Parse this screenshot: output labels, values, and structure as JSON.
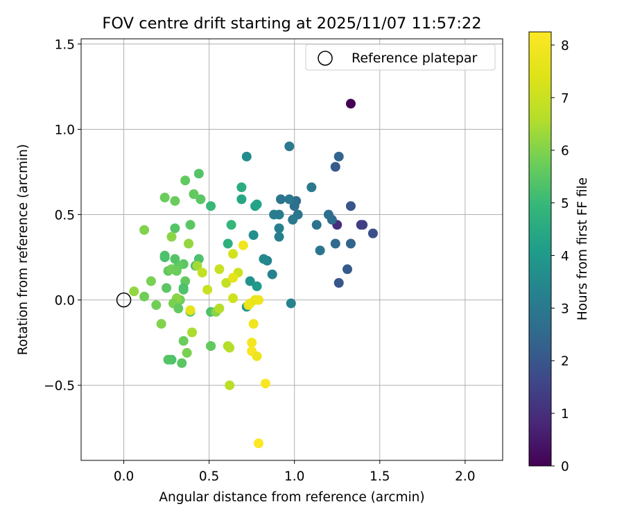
{
  "chart_data": {
    "type": "scatter",
    "title": "FOV centre drift starting at 2025/11/07 11:57:22",
    "xlabel": "Angular distance from reference (arcmin)",
    "ylabel": "Rotation from reference (arcmin)",
    "xlim": [
      -0.25,
      2.22
    ],
    "ylim": [
      -0.94,
      1.53
    ],
    "xticks": [
      0.0,
      0.5,
      1.0,
      1.5,
      2.0
    ],
    "xtick_labels": [
      "0.0",
      "0.5",
      "1.0",
      "1.5",
      "2.0"
    ],
    "yticks": [
      -0.5,
      0.0,
      0.5,
      1.0,
      1.5
    ],
    "ytick_labels": [
      "−0.5",
      "0.0",
      "0.5",
      "1.0",
      "1.5"
    ],
    "grid": true,
    "legend": {
      "placement": "top-right",
      "entries": [
        "Reference platepar"
      ]
    },
    "reference_point": {
      "label": "Reference platepar",
      "x": 0.0,
      "y": 0.0
    },
    "colorbar": {
      "label": "Hours from first FF file",
      "min": 0,
      "max": 8.25,
      "ticks": [
        0,
        1,
        2,
        3,
        4,
        5,
        6,
        7,
        8
      ],
      "tick_labels": [
        "0",
        "1",
        "2",
        "3",
        "4",
        "5",
        "6",
        "7",
        "8"
      ],
      "colormap": "viridis"
    },
    "points": [
      {
        "x": 1.33,
        "y": 1.15,
        "t": 0.0
      },
      {
        "x": 1.25,
        "y": 0.44,
        "t": 1.0
      },
      {
        "x": 1.39,
        "y": 0.44,
        "t": 1.3
      },
      {
        "x": 1.4,
        "y": 0.44,
        "t": 1.4
      },
      {
        "x": 1.46,
        "y": 0.39,
        "t": 1.8
      },
      {
        "x": 1.33,
        "y": 0.55,
        "t": 2.0
      },
      {
        "x": 1.31,
        "y": 0.18,
        "t": 2.1
      },
      {
        "x": 1.26,
        "y": 0.1,
        "t": 2.0
      },
      {
        "x": 1.24,
        "y": 0.78,
        "t": 2.1
      },
      {
        "x": 1.26,
        "y": 0.84,
        "t": 2.4
      },
      {
        "x": 1.33,
        "y": 0.33,
        "t": 2.4
      },
      {
        "x": 1.24,
        "y": 0.33,
        "t": 2.6
      },
      {
        "x": 1.22,
        "y": 0.47,
        "t": 2.6
      },
      {
        "x": 1.2,
        "y": 0.5,
        "t": 2.7
      },
      {
        "x": 1.13,
        "y": 0.44,
        "t": 2.8
      },
      {
        "x": 1.15,
        "y": 0.29,
        "t": 2.9
      },
      {
        "x": 1.1,
        "y": 0.66,
        "t": 3.0
      },
      {
        "x": 1.01,
        "y": 0.58,
        "t": 2.6
      },
      {
        "x": 1.0,
        "y": 0.55,
        "t": 2.7
      },
      {
        "x": 1.02,
        "y": 0.5,
        "t": 2.9
      },
      {
        "x": 0.99,
        "y": 0.47,
        "t": 3.0
      },
      {
        "x": 0.97,
        "y": 0.59,
        "t": 3.0
      },
      {
        "x": 0.92,
        "y": 0.59,
        "t": 2.9
      },
      {
        "x": 0.97,
        "y": 0.9,
        "t": 3.0
      },
      {
        "x": 0.91,
        "y": 0.5,
        "t": 3.1
      },
      {
        "x": 0.88,
        "y": 0.5,
        "t": 3.1
      },
      {
        "x": 0.91,
        "y": 0.42,
        "t": 3.2
      },
      {
        "x": 0.91,
        "y": 0.37,
        "t": 3.2
      },
      {
        "x": 0.98,
        "y": -0.02,
        "t": 3.3
      },
      {
        "x": 0.87,
        "y": 0.15,
        "t": 3.3
      },
      {
        "x": 0.84,
        "y": 0.23,
        "t": 3.4
      },
      {
        "x": 0.82,
        "y": 0.24,
        "t": 3.5
      },
      {
        "x": 0.72,
        "y": 0.84,
        "t": 3.6
      },
      {
        "x": 0.76,
        "y": 0.38,
        "t": 3.7
      },
      {
        "x": 0.74,
        "y": 0.11,
        "t": 3.8
      },
      {
        "x": 0.72,
        "y": -0.04,
        "t": 3.9
      },
      {
        "x": 0.78,
        "y": 0.08,
        "t": 4.0
      },
      {
        "x": 0.77,
        "y": 0.55,
        "t": 4.2
      },
      {
        "x": 0.78,
        "y": 0.56,
        "t": 4.3
      },
      {
        "x": 0.69,
        "y": 0.59,
        "t": 4.4
      },
      {
        "x": 0.69,
        "y": 0.66,
        "t": 4.6
      },
      {
        "x": 0.61,
        "y": 0.33,
        "t": 4.7
      },
      {
        "x": 0.63,
        "y": 0.44,
        "t": 4.9
      },
      {
        "x": 0.51,
        "y": 0.55,
        "t": 5.0
      },
      {
        "x": 0.51,
        "y": -0.27,
        "t": 5.1
      },
      {
        "x": 0.51,
        "y": -0.07,
        "t": 5.3
      },
      {
        "x": 0.44,
        "y": 0.74,
        "t": 5.4
      },
      {
        "x": 0.45,
        "y": 0.59,
        "t": 5.5
      },
      {
        "x": 0.41,
        "y": 0.62,
        "t": 5.6
      },
      {
        "x": 0.36,
        "y": 0.7,
        "t": 5.6
      },
      {
        "x": 0.3,
        "y": 0.58,
        "t": 5.7
      },
      {
        "x": 0.24,
        "y": 0.6,
        "t": 5.7
      },
      {
        "x": 0.39,
        "y": 0.44,
        "t": 5.5
      },
      {
        "x": 0.3,
        "y": 0.42,
        "t": 5.4
      },
      {
        "x": 0.44,
        "y": 0.24,
        "t": 5.3
      },
      {
        "x": 0.42,
        "y": 0.2,
        "t": 5.2
      },
      {
        "x": 0.35,
        "y": 0.21,
        "t": 5.5
      },
      {
        "x": 0.32,
        "y": 0.2,
        "t": 5.6
      },
      {
        "x": 0.3,
        "y": 0.24,
        "t": 5.4
      },
      {
        "x": 0.24,
        "y": 0.25,
        "t": 5.2
      },
      {
        "x": 0.24,
        "y": 0.26,
        "t": 5.3
      },
      {
        "x": 0.26,
        "y": 0.17,
        "t": 5.6
      },
      {
        "x": 0.28,
        "y": 0.18,
        "t": 5.8
      },
      {
        "x": 0.31,
        "y": 0.17,
        "t": 5.7
      },
      {
        "x": 0.36,
        "y": 0.11,
        "t": 5.6
      },
      {
        "x": 0.35,
        "y": 0.06,
        "t": 5.4
      },
      {
        "x": 0.25,
        "y": 0.07,
        "t": 5.5
      },
      {
        "x": 0.16,
        "y": 0.11,
        "t": 5.9
      },
      {
        "x": 0.12,
        "y": 0.41,
        "t": 6.0
      },
      {
        "x": 0.28,
        "y": 0.37,
        "t": 6.1
      },
      {
        "x": 0.38,
        "y": 0.33,
        "t": 6.2
      },
      {
        "x": 0.35,
        "y": 0.07,
        "t": 5.3
      },
      {
        "x": 0.33,
        "y": 0.0,
        "t": 5.8
      },
      {
        "x": 0.31,
        "y": 0.01,
        "t": 6.1
      },
      {
        "x": 0.29,
        "y": -0.02,
        "t": 5.9
      },
      {
        "x": 0.32,
        "y": -0.05,
        "t": 5.6
      },
      {
        "x": 0.39,
        "y": -0.07,
        "t": 5.5
      },
      {
        "x": 0.19,
        "y": -0.03,
        "t": 5.8
      },
      {
        "x": 0.12,
        "y": 0.02,
        "t": 5.8
      },
      {
        "x": 0.06,
        "y": 0.05,
        "t": 6.2
      },
      {
        "x": 0.22,
        "y": -0.14,
        "t": 6.0
      },
      {
        "x": 0.35,
        "y": -0.24,
        "t": 5.7
      },
      {
        "x": 0.4,
        "y": -0.19,
        "t": 6.5
      },
      {
        "x": 0.37,
        "y": -0.31,
        "t": 5.9
      },
      {
        "x": 0.34,
        "y": -0.37,
        "t": 5.5
      },
      {
        "x": 0.28,
        "y": -0.35,
        "t": 5.3
      },
      {
        "x": 0.26,
        "y": -0.35,
        "t": 5.4
      },
      {
        "x": 0.51,
        "y": -0.27,
        "t": 5.6
      },
      {
        "x": 0.54,
        "y": -0.07,
        "t": 6.1
      },
      {
        "x": 0.56,
        "y": -0.05,
        "t": 6.6
      },
      {
        "x": 0.62,
        "y": -0.28,
        "t": 6.7
      },
      {
        "x": 0.61,
        "y": -0.27,
        "t": 6.6
      },
      {
        "x": 0.62,
        "y": -0.5,
        "t": 6.7
      },
      {
        "x": 0.39,
        "y": -0.06,
        "t": 7.6
      },
      {
        "x": 0.43,
        "y": 0.2,
        "t": 6.4
      },
      {
        "x": 0.46,
        "y": 0.16,
        "t": 6.9
      },
      {
        "x": 0.49,
        "y": 0.06,
        "t": 7.0
      },
      {
        "x": 0.56,
        "y": 0.18,
        "t": 7.0
      },
      {
        "x": 0.6,
        "y": 0.1,
        "t": 6.9
      },
      {
        "x": 0.64,
        "y": 0.27,
        "t": 7.2
      },
      {
        "x": 0.67,
        "y": 0.16,
        "t": 7.1
      },
      {
        "x": 0.64,
        "y": 0.13,
        "t": 7.6
      },
      {
        "x": 0.64,
        "y": 0.01,
        "t": 7.1
      },
      {
        "x": 0.7,
        "y": 0.32,
        "t": 7.9
      },
      {
        "x": 0.73,
        "y": -0.03,
        "t": 7.6
      },
      {
        "x": 0.74,
        "y": -0.02,
        "t": 7.8
      },
      {
        "x": 0.77,
        "y": 0.0,
        "t": 7.7
      },
      {
        "x": 0.79,
        "y": 0.0,
        "t": 7.8
      },
      {
        "x": 0.76,
        "y": -0.14,
        "t": 7.9
      },
      {
        "x": 0.75,
        "y": -0.25,
        "t": 8.0
      },
      {
        "x": 0.75,
        "y": -0.3,
        "t": 8.1
      },
      {
        "x": 0.78,
        "y": -0.33,
        "t": 7.8
      },
      {
        "x": 0.83,
        "y": -0.49,
        "t": 8.1
      },
      {
        "x": 0.79,
        "y": -0.84,
        "t": 8.2
      }
    ]
  }
}
